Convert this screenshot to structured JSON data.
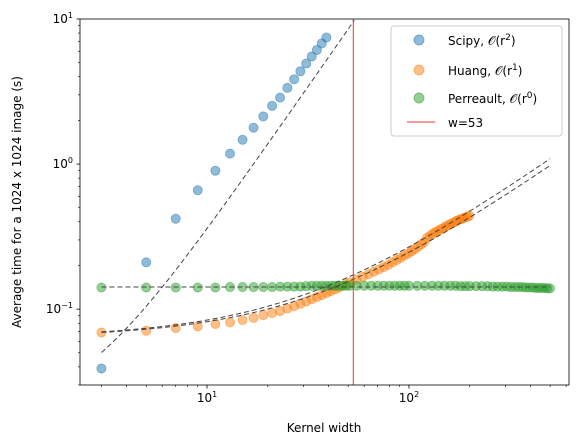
{
  "chart_data": {
    "type": "scatter",
    "xscale": "log",
    "yscale": "log",
    "xlabel": "Kernel width",
    "ylabel": "Average time for a 1024 x 1024 image (s)",
    "xlim": [
      2.35,
      620
    ],
    "ylim": [
      0.03,
      10
    ],
    "x_ticks": [
      {
        "value": 10,
        "label": "10",
        "exp": "1"
      },
      {
        "value": 100,
        "label": "10",
        "exp": "2"
      }
    ],
    "y_ticks": [
      {
        "value": 0.1,
        "label": "10",
        "exp": "−1"
      },
      {
        "value": 1,
        "label": "10",
        "exp": "0"
      },
      {
        "value": 10,
        "label": "10",
        "exp": "1"
      }
    ],
    "legend_position": "top-right",
    "vline": {
      "x": 53,
      "color": "#e8383a",
      "label": "w=53"
    },
    "series": [
      {
        "name": "Scipy, 𝒪(r²)",
        "name_base": "Scipy, 𝒪(r",
        "name_exp": "2",
        "name_end": ")",
        "color": "#1f77b4",
        "x": [
          3,
          5,
          7,
          9,
          11,
          13,
          15,
          17,
          19,
          21,
          23,
          25,
          27,
          29,
          31,
          33,
          35,
          37,
          39
        ],
        "y": [
          0.039,
          0.21,
          0.42,
          0.66,
          0.9,
          1.18,
          1.47,
          1.78,
          2.13,
          2.52,
          2.87,
          3.35,
          3.84,
          4.36,
          4.93,
          5.52,
          6.12,
          6.79,
          7.45
        ],
        "fit": {
          "a": 0.0034,
          "b": 0.0,
          "c": 0.0196,
          "xmin": 3,
          "xmax": 44
        }
      },
      {
        "name": "Huang, 𝒪(r¹)",
        "name_base": "Huang, 𝒪(r",
        "name_exp": "1",
        "name_end": ")",
        "color": "#ff7f0e",
        "x": [
          3,
          5,
          7,
          9,
          11,
          13,
          15,
          17,
          19,
          21,
          23,
          25,
          27,
          29,
          31,
          33,
          35,
          37,
          39,
          41,
          43,
          45,
          47,
          49,
          51,
          55,
          59,
          63,
          67,
          71,
          75,
          79,
          83,
          87,
          91,
          95,
          99,
          103,
          107,
          111,
          115,
          119,
          123,
          127,
          131,
          135,
          139,
          143,
          147,
          151,
          155,
          159,
          163,
          167,
          171,
          175,
          179,
          183,
          187,
          191,
          195,
          199
        ],
        "y": [
          0.069,
          0.071,
          0.074,
          0.076,
          0.079,
          0.081,
          0.084,
          0.087,
          0.091,
          0.094,
          0.097,
          0.101,
          0.105,
          0.109,
          0.113,
          0.117,
          0.121,
          0.125,
          0.129,
          0.133,
          0.137,
          0.141,
          0.145,
          0.149,
          0.153,
          0.16,
          0.167,
          0.174,
          0.181,
          0.188,
          0.195,
          0.202,
          0.21,
          0.218,
          0.226,
          0.234,
          0.242,
          0.25,
          0.26,
          0.27,
          0.28,
          0.29,
          0.31,
          0.32,
          0.33,
          0.34,
          0.345,
          0.355,
          0.36,
          0.37,
          0.375,
          0.385,
          0.39,
          0.395,
          0.405,
          0.41,
          0.415,
          0.42,
          0.425,
          0.43,
          0.435,
          0.44
        ],
        "fit_lines": [
          {
            "slope": 0.00183,
            "intercept": 0.0636,
            "xmin": 3,
            "xmax": 500
          },
          {
            "slope": 0.00205,
            "intercept": 0.0636,
            "xmin": 3,
            "xmax": 500
          }
        ]
      },
      {
        "name": "Perreault, 𝒪(r⁰)",
        "name_base": "Perreault, 𝒪(r",
        "name_exp": "0",
        "name_end": ")",
        "color": "#2ca02c",
        "x": [
          3,
          5,
          7,
          9,
          11,
          13,
          15,
          17,
          19,
          21,
          23,
          25,
          27,
          29,
          31,
          33,
          35,
          37,
          39,
          41,
          43,
          45,
          47,
          49,
          51,
          55,
          60,
          65,
          70,
          75,
          80,
          85,
          90,
          95,
          100,
          110,
          120,
          130,
          140,
          150,
          160,
          170,
          180,
          190,
          200,
          215,
          230,
          245,
          260,
          275,
          290,
          305,
          320,
          335,
          350,
          365,
          380,
          395,
          410,
          425,
          440,
          455,
          470,
          485,
          499
        ],
        "y": [
          0.141,
          0.141,
          0.141,
          0.141,
          0.141,
          0.142,
          0.142,
          0.142,
          0.142,
          0.142,
          0.143,
          0.143,
          0.143,
          0.143,
          0.144,
          0.145,
          0.145,
          0.145,
          0.145,
          0.145,
          0.145,
          0.145,
          0.145,
          0.145,
          0.145,
          0.145,
          0.145,
          0.145,
          0.145,
          0.145,
          0.145,
          0.145,
          0.145,
          0.145,
          0.145,
          0.145,
          0.145,
          0.145,
          0.145,
          0.145,
          0.145,
          0.145,
          0.144,
          0.144,
          0.144,
          0.144,
          0.144,
          0.144,
          0.143,
          0.143,
          0.143,
          0.143,
          0.142,
          0.142,
          0.142,
          0.142,
          0.141,
          0.141,
          0.141,
          0.14,
          0.14,
          0.14,
          0.14,
          0.139,
          0.139
        ],
        "fit": {
          "constant": 0.142,
          "xmin": 3,
          "xmax": 500
        }
      }
    ]
  }
}
